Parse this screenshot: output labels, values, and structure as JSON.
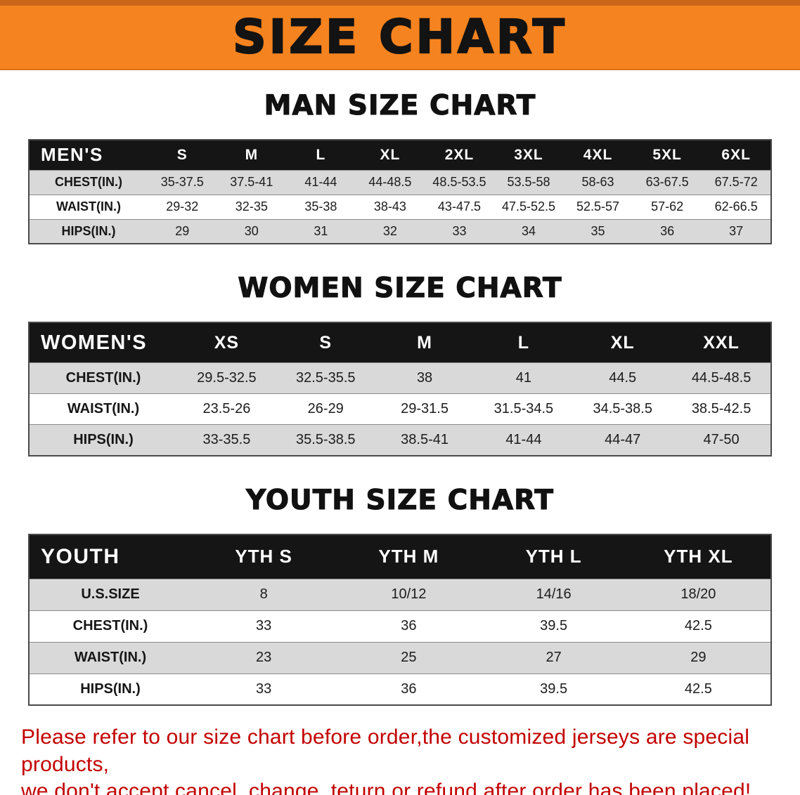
{
  "banner": {
    "title": "SIZE CHART"
  },
  "sections": [
    {
      "id": "men",
      "heading": "MAN SIZE CHART",
      "table": {
        "header": [
          "MEN'S",
          "S",
          "M",
          "L",
          "XL",
          "2XL",
          "3XL",
          "4XL",
          "5XL",
          "6XL"
        ],
        "rows": [
          [
            "CHEST(IN.)",
            "35-37.5",
            "37.5-41",
            "41-44",
            "44-48.5",
            "48.5-53.5",
            "53.5-58",
            "58-63",
            "63-67.5",
            "67.5-72"
          ],
          [
            "WAIST(IN.)",
            "29-32",
            "32-35",
            "35-38",
            "38-43",
            "43-47.5",
            "47.5-52.5",
            "52.5-57",
            "57-62",
            "62-66.5"
          ],
          [
            "HIPS(IN.)",
            "29",
            "30",
            "31",
            "32",
            "33",
            "34",
            "35",
            "36",
            "37"
          ]
        ]
      }
    },
    {
      "id": "women",
      "heading": "WOMEN SIZE CHART",
      "table": {
        "header": [
          "WOMEN'S",
          "XS",
          "S",
          "M",
          "L",
          "XL",
          "XXL"
        ],
        "rows": [
          [
            "CHEST(IN.)",
            "29.5-32.5",
            "32.5-35.5",
            "38",
            "41",
            "44.5",
            "44.5-48.5"
          ],
          [
            "WAIST(IN.)",
            "23.5-26",
            "26-29",
            "29-31.5",
            "31.5-34.5",
            "34.5-38.5",
            "38.5-42.5"
          ],
          [
            "HIPS(IN.)",
            "33-35.5",
            "35.5-38.5",
            "38.5-41",
            "41-44",
            "44-47",
            "47-50"
          ]
        ]
      }
    },
    {
      "id": "youth",
      "heading": "YOUTH SIZE CHART",
      "table": {
        "header": [
          "YOUTH",
          "YTH S",
          "YTH M",
          "YTH L",
          "YTH XL"
        ],
        "rows": [
          [
            "U.S.SIZE",
            "8",
            "10/12",
            "14/16",
            "18/20"
          ],
          [
            "CHEST(IN.)",
            "33",
            "36",
            "39.5",
            "42.5"
          ],
          [
            "WAIST(IN.)",
            "23",
            "25",
            "27",
            "29"
          ],
          [
            "HIPS(IN.)",
            "33",
            "36",
            "39.5",
            "42.5"
          ]
        ]
      }
    }
  ],
  "footer": {
    "lines": [
      "Please refer to our size chart before order,the customized jerseys are special products,",
      "we don't accept cancel, change, teturn or refund after order has been placed!"
    ]
  },
  "colors": {
    "banner_bg": "#F5831F",
    "table_header_bg": "#151515",
    "row_shaded": "#D9D9D9",
    "notice_red": "#C30000"
  }
}
